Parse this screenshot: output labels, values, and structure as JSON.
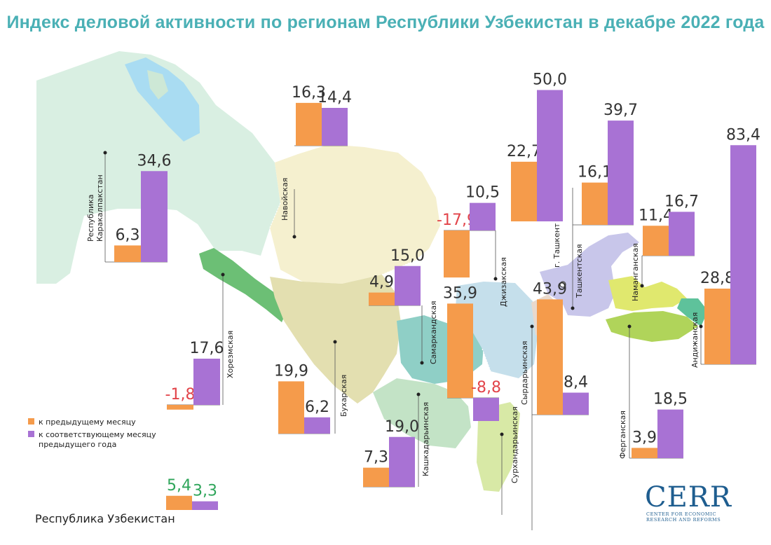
{
  "title": "Индекс деловой активности по регионам Республики Узбекистан в декабре 2022 года",
  "colors": {
    "prev_month": "#f59b4b",
    "prev_year_month": "#a872d4",
    "title": "#4ab0b5",
    "negative_value": "#e2444a",
    "positive_value": "#2ea55a"
  },
  "legend": {
    "prev_month": "к предыдущему месяцу",
    "prev_year_month_line1": "к соответствующему месяцу",
    "prev_year_month_line2": "предыдущего года"
  },
  "chart_data": {
    "type": "bar",
    "series_keys": [
      "prev_month",
      "prev_year_month"
    ],
    "series": [
      {
        "name": "к предыдущему месяцу"
      },
      {
        "name": "к соответствующему месяцу предыдущего года"
      }
    ],
    "regions": [
      {
        "id": "karakalpakstan",
        "name": "Республика Каракалпакстан",
        "name_line1": "Республика",
        "name_line2": "Каракалпакстан",
        "values": [
          6.3,
          34.6
        ],
        "labels": [
          "6,3",
          "34,6"
        ]
      },
      {
        "id": "khorezm",
        "name": "Хорезмская",
        "values": [
          -1.8,
          17.6
        ],
        "labels": [
          "-1,8",
          "17,6"
        ]
      },
      {
        "id": "navoi",
        "name": "Навойская",
        "values": [
          16.3,
          14.4
        ],
        "labels": [
          "16,3",
          "14,4"
        ]
      },
      {
        "id": "bukhara",
        "name": "Бухарская",
        "values": [
          19.9,
          6.2
        ],
        "labels": [
          "19,9",
          "6,2"
        ]
      },
      {
        "id": "samarkand",
        "name": "Самаркандская",
        "values": [
          4.9,
          15.0
        ],
        "labels": [
          "4,9",
          "15,0"
        ]
      },
      {
        "id": "kashkadarya",
        "name": "Кашкадарьинская",
        "values": [
          7.3,
          19.0
        ],
        "labels": [
          "7,3",
          "19,0"
        ]
      },
      {
        "id": "surkhandarya",
        "name": "Сурхандарьинская",
        "values": [
          35.9,
          -8.8
        ],
        "labels": [
          "35,9",
          "-8,8"
        ]
      },
      {
        "id": "jizzakh",
        "name": "Джизакская",
        "values": [
          -17.9,
          10.5
        ],
        "labels": [
          "-17,9",
          "10,5"
        ]
      },
      {
        "id": "syrdarya",
        "name": "Сырдарьинская",
        "values": [
          43.9,
          8.4
        ],
        "labels": [
          "43,9",
          "8,4"
        ]
      },
      {
        "id": "tashkent_city",
        "name": "г. Ташкент",
        "values": [
          22.7,
          50.0
        ],
        "labels": [
          "22,7",
          "50,0"
        ]
      },
      {
        "id": "tashkent",
        "name": "Ташкентская",
        "values": [
          16.1,
          39.7
        ],
        "labels": [
          "16,1",
          "39,7"
        ]
      },
      {
        "id": "namangan",
        "name": "Наманганская",
        "values": [
          11.4,
          16.7
        ],
        "labels": [
          "11,4",
          "16,7"
        ]
      },
      {
        "id": "andijan",
        "name": "Андижанская",
        "values": [
          28.8,
          83.4
        ],
        "labels": [
          "28,8",
          "83,4"
        ]
      },
      {
        "id": "fergana",
        "name": "Ферганская",
        "values": [
          3.9,
          18.5
        ],
        "labels": [
          "3,9",
          "18,5"
        ]
      },
      {
        "id": "uzbekistan",
        "name": "Республика Узбекистан",
        "values": [
          5.4,
          3.3
        ],
        "labels": [
          "5,4",
          "3,3"
        ]
      }
    ]
  },
  "logo": {
    "main": "CERR",
    "sub_line1": "CENTER FOR ECONOMIC",
    "sub_line2": "RESEARCH AND REFORMS"
  }
}
